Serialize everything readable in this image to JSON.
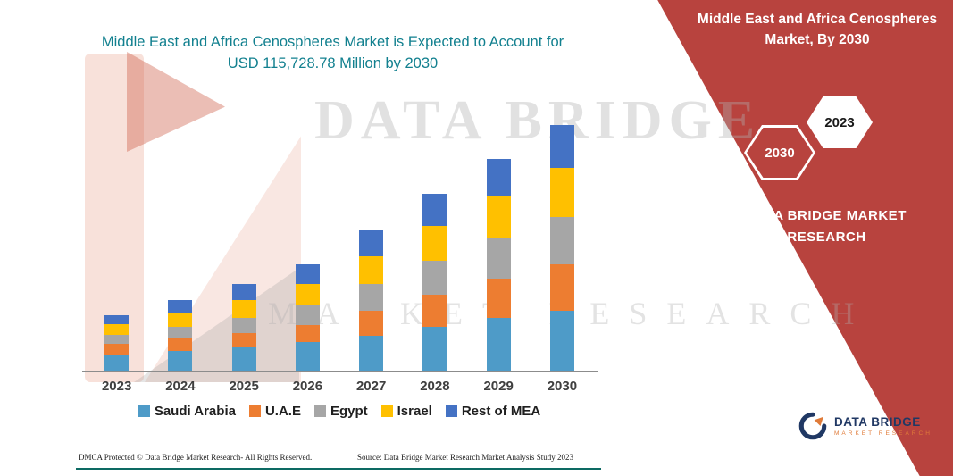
{
  "title": "Middle East and Africa Cenospheres Market is Expected to Account for USD 115,728.78 Million by 2030",
  "side_panel": {
    "heading": "Middle East and Africa Cenospheres Market, By 2030",
    "badge_front": "2023",
    "badge_back": "2030",
    "brand": "DATA BRIDGE MARKET RESEARCH"
  },
  "watermark": {
    "line1": "DATA BRIDGE",
    "line2": "MARKET RESEARCH"
  },
  "footer": {
    "dmca": "DMCA Protected © Data Bridge Market Research-  All Rights Reserved.",
    "source": "Source: Data Bridge Market Research  Market Analysis Study 2023"
  },
  "logo": {
    "name": "DATA BRIDGE",
    "sub": "MARKET RESEARCH"
  },
  "chart_data": {
    "type": "bar",
    "subtype": "stacked",
    "title": "Middle East and Africa Cenospheres Market is Expected to Account for USD 115,728.78 Million by 2030",
    "unit": "USD Million",
    "total_2030": 115728.78,
    "categories": [
      "2023",
      "2024",
      "2025",
      "2026",
      "2027",
      "2028",
      "2029",
      "2030"
    ],
    "series": [
      {
        "name": "Saudi Arabia",
        "color": "#4E9BC8",
        "values": [
          7500,
          9200,
          10800,
          13300,
          16600,
          20800,
          25000,
          28300
        ]
      },
      {
        "name": "U.A.E",
        "color": "#ED7D31",
        "values": [
          5000,
          5800,
          6700,
          8300,
          11650,
          15000,
          18300,
          21650
        ]
      },
      {
        "name": "Egypt",
        "color": "#A6A6A6",
        "values": [
          4200,
          5800,
          7500,
          9200,
          12500,
          15800,
          19100,
          22480
        ]
      },
      {
        "name": "Israel",
        "color": "#FFC000",
        "values": [
          5400,
          6700,
          8300,
          10000,
          13300,
          16600,
          20000,
          23300
        ]
      },
      {
        "name": "Rest of MEA",
        "color": "#4472C4",
        "values": [
          4100,
          5800,
          7500,
          9200,
          12500,
          15000,
          17500,
          19998.78
        ]
      }
    ],
    "xlabel": "",
    "ylabel": "",
    "ylim": [
      0,
      120000
    ],
    "grid": false,
    "legend_position": "bottom",
    "colors": {
      "accent_red": "#B8433E",
      "title_teal": "#12808F",
      "logo_navy": "#203864",
      "logo_orange": "#E07B39"
    }
  }
}
